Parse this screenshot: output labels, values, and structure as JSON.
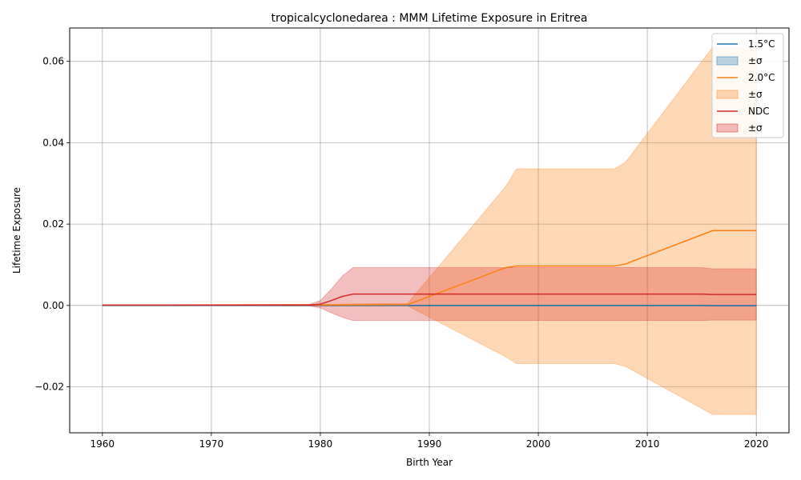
{
  "chart_data": {
    "type": "line",
    "title": "tropicalcyclonedarea : MMM Lifetime Exposure in Eritrea",
    "xlabel": "Birth Year",
    "ylabel": "Lifetime Exposure",
    "xlim": [
      1957,
      2023
    ],
    "ylim": [
      -0.0313,
      0.0682
    ],
    "xticks": [
      1960,
      1970,
      1980,
      1990,
      2000,
      2010,
      2020
    ],
    "xtick_labels": [
      "1960",
      "1970",
      "1980",
      "1990",
      "2000",
      "2010",
      "2020"
    ],
    "yticks": [
      -0.02,
      0,
      0.02,
      0.04,
      0.06
    ],
    "ytick_labels": [
      "−0.02",
      "0.00",
      "0.02",
      "0.04",
      "0.06"
    ],
    "grid": true,
    "legend_position": "top-right",
    "series": [
      {
        "name": "1.5°C",
        "band_label": "±σ",
        "color": "#1f77b4",
        "x": [
          1960,
          1980,
          2015,
          2016,
          2020
        ],
        "values": [
          0,
          0,
          0,
          -5e-05,
          -5e-05
        ],
        "upper": [
          0,
          0.0001,
          0.0001,
          5e-05,
          5e-05
        ],
        "lower": [
          0,
          -0.0001,
          -0.0001,
          -0.00015,
          -0.00015
        ]
      },
      {
        "name": "2.0°C",
        "band_label": "±σ",
        "color": "#ff7f0e",
        "x": [
          1960,
          1980,
          1988,
          1997,
          1998,
          2007,
          2008,
          2016,
          2020
        ],
        "values": [
          0.0001,
          0.0001,
          0.0002,
          0.0093,
          0.0097,
          0.0097,
          0.0102,
          0.0184,
          0.0184
        ],
        "upper": [
          0.0001,
          0.0003,
          0.0005,
          0.0292,
          0.0336,
          0.0336,
          0.0352,
          0.0635,
          0.0635
        ],
        "lower": [
          0.0001,
          -0.0001,
          -0.0001,
          -0.0126,
          -0.0143,
          -0.0143,
          -0.015,
          -0.0268,
          -0.0268
        ]
      },
      {
        "name": "NDC",
        "band_label": "±σ",
        "color": "#d62728",
        "x": [
          1960,
          1979,
          1980,
          1981,
          1982,
          1983,
          2015,
          2016,
          2020
        ],
        "values": [
          0.0001,
          0.0001,
          0.0003,
          0.0012,
          0.0022,
          0.0028,
          0.0028,
          0.0027,
          0.0027
        ],
        "upper": [
          0.0001,
          0.0003,
          0.0012,
          0.004,
          0.0072,
          0.0093,
          0.0093,
          0.009,
          0.009
        ],
        "lower": [
          0.0001,
          -0.0001,
          -0.0006,
          -0.0018,
          -0.0029,
          -0.0037,
          -0.0037,
          -0.0036,
          -0.0036
        ]
      }
    ]
  }
}
